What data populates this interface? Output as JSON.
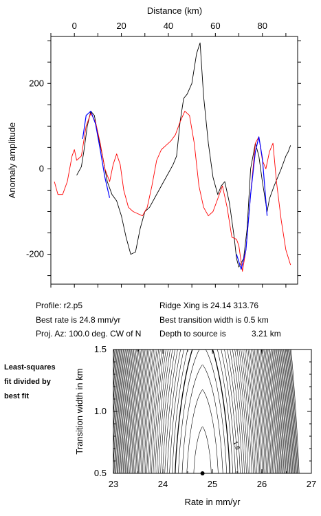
{
  "info": {
    "profile": "Profile: r2.p5",
    "best_rate": "Best rate is 24.8 mm/yr",
    "proj_az": "Proj. Az: 100.0 deg. CW of N",
    "ridge_xing": "Ridge Xing is 24.14 313.76",
    "best_width": "Best transition width is 0.5 km",
    "depth_label": "Depth to source is",
    "depth_value": "3.21 km"
  },
  "side_note": {
    "line1": "Least-squares",
    "line2": "fit divided by",
    "line3": "best fit"
  },
  "colors": {
    "observed": "#000000",
    "model": "#ff0000",
    "fit": "#0000ff"
  },
  "chart_data": [
    {
      "type": "line",
      "title": "",
      "xlabel": "Distance (km)",
      "ylabel": "Anomaly amplitude",
      "xlim": [
        -10,
        95
      ],
      "ylim": [
        -270,
        310
      ],
      "x_axis_position": "top",
      "xticks": [
        0,
        20,
        40,
        60,
        80
      ],
      "yticks": [
        200,
        0,
        -200
      ],
      "grid": false,
      "series": [
        {
          "key": "observed",
          "color": "#000000",
          "x": [
            1,
            3,
            4,
            5.5,
            7,
            8.5,
            10,
            12,
            14,
            16,
            18,
            20,
            22,
            24,
            26,
            28,
            30,
            32,
            34,
            36,
            38,
            40,
            42,
            43.5,
            45,
            46.5,
            48,
            50,
            52,
            53.5,
            55,
            57,
            59,
            61,
            62.5,
            64,
            66,
            68,
            69,
            70,
            72,
            73.5,
            75,
            77,
            78.5,
            80,
            82,
            83,
            85,
            88,
            90,
            91,
            92
          ],
          "y": [
            -15,
            5,
            40,
            100,
            135,
            125,
            80,
            30,
            -30,
            -60,
            -75,
            -110,
            -160,
            -200,
            -195,
            -140,
            -100,
            -90,
            -70,
            -50,
            -30,
            -10,
            10,
            30,
            110,
            165,
            175,
            200,
            270,
            295,
            170,
            60,
            -20,
            -60,
            -40,
            -30,
            -80,
            -160,
            -210,
            -230,
            -210,
            -140,
            0,
            60,
            30,
            -30,
            -100,
            -70,
            -40,
            0,
            30,
            40,
            55
          ]
        },
        {
          "key": "model",
          "color": "#ff0000",
          "x": [
            -8.5,
            -7,
            -5,
            -3,
            -1,
            0,
            1,
            3,
            5,
            7,
            9,
            11,
            13,
            15,
            16.5,
            18,
            19.5,
            21,
            23,
            25,
            27,
            29,
            31,
            33,
            35,
            37,
            39,
            41,
            43,
            45,
            47,
            49,
            51,
            53,
            55,
            57,
            59,
            61,
            63,
            65,
            67,
            69,
            70,
            71.5,
            73,
            75,
            77,
            78.5,
            80,
            81.5,
            83,
            84.5,
            86,
            88,
            90,
            92
          ],
          "y": [
            -30,
            -60,
            -60,
            -30,
            30,
            45,
            20,
            30,
            100,
            130,
            110,
            60,
            0,
            -30,
            10,
            35,
            10,
            -50,
            -90,
            -100,
            -105,
            -110,
            -90,
            -40,
            20,
            45,
            55,
            65,
            80,
            110,
            135,
            125,
            60,
            -40,
            -90,
            -110,
            -100,
            -70,
            -40,
            -90,
            -160,
            -165,
            -180,
            -240,
            -190,
            -60,
            60,
            75,
            20,
            0,
            40,
            60,
            -30,
            -120,
            -190,
            -225
          ]
        }
      ],
      "fit_segments": [
        {
          "key": "fit",
          "color": "#0000ff",
          "x": [
            3.5,
            5,
            7,
            9,
            11,
            13,
            15
          ],
          "y": [
            70,
            125,
            135,
            105,
            45,
            -20,
            -68
          ]
        },
        {
          "key": "fit",
          "color": "#0000ff",
          "x": [
            69,
            71,
            73,
            75,
            77,
            78.5,
            80,
            82
          ],
          "y": [
            -200,
            -235,
            -190,
            -60,
            40,
            75,
            25,
            -110
          ]
        }
      ]
    },
    {
      "type": "contour",
      "title": "",
      "xlabel": "Rate in mm/yr",
      "ylabel": "Transition width in km",
      "xlim": [
        23,
        27
      ],
      "ylim": [
        0.5,
        1.5
      ],
      "xticks": [
        23,
        24,
        25,
        26,
        27
      ],
      "yticks": [
        1.5,
        1.0,
        0.5
      ],
      "best_fit_point": {
        "x": 24.8,
        "y": 0.5
      },
      "contour_label": "1.5"
    }
  ]
}
